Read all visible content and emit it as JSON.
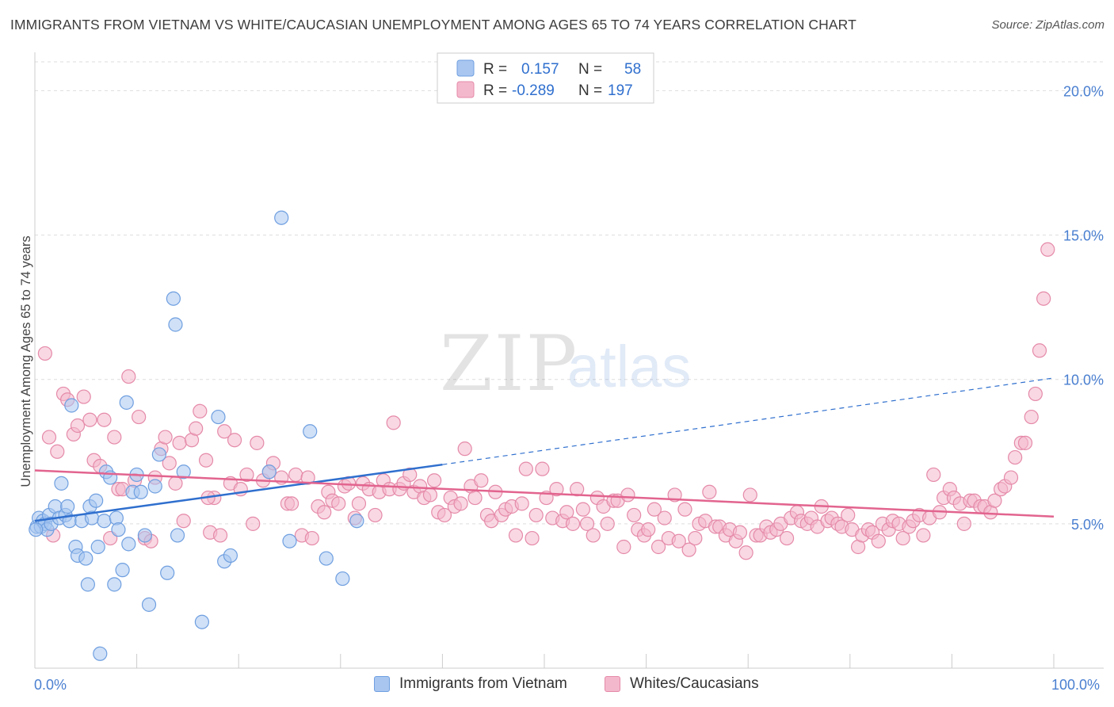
{
  "title": "IMMIGRANTS FROM VIETNAM VS WHITE/CAUCASIAN UNEMPLOYMENT AMONG AGES 65 TO 74 YEARS CORRELATION CHART",
  "source": "Source: ZipAtlas.com",
  "watermark": {
    "zip": "ZIP",
    "atlas": "atlas"
  },
  "legend_stats": [
    {
      "r_label": "R =",
      "r_value": "0.157",
      "n_label": "N =",
      "n_value": "58"
    },
    {
      "r_label": "R =",
      "r_value": "-0.289",
      "n_label": "N =",
      "n_value": "197"
    }
  ],
  "bottom_legend": [
    "Immigrants from Vietnam",
    "Whites/Caucasians"
  ],
  "colors": {
    "blue_fill": "#a8c6f0",
    "blue_stroke": "#6f9fe0",
    "blue_line": "#2f6fce",
    "pink_fill": "#f4b8cc",
    "pink_stroke": "#e58aa8",
    "pink_line": "#e2648f",
    "tick_text": "#4a7fd0",
    "grid": "#dddddd"
  },
  "chart_data": {
    "type": "scatter",
    "title": "IMMIGRANTS FROM VIETNAM VS WHITE/CAUCASIAN UNEMPLOYMENT AMONG AGES 65 TO 74 YEARS CORRELATION CHART",
    "xlabel": "",
    "ylabel": "Unemployment Among Ages 65 to 74 years",
    "xlim": [
      0,
      100
    ],
    "ylim": [
      0,
      21
    ],
    "x_tick_labels": [
      "0.0%",
      "100.0%"
    ],
    "y_ticks": [
      5,
      10,
      15,
      20
    ],
    "y_tick_labels": [
      "5.0%",
      "10.0%",
      "15.0%",
      "20.0%"
    ],
    "grid": true,
    "legend_position": "top-center",
    "series": [
      {
        "name": "Immigrants from Vietnam",
        "r": 0.157,
        "n": 58,
        "trend": {
          "x0": 0,
          "y0": 5.1,
          "x1": 40,
          "y1": 7.05,
          "dashed_to_x": 100,
          "dashed_y1": 10.05
        },
        "points": [
          [
            0.2,
            4.9
          ],
          [
            0.4,
            5.2
          ],
          [
            0.6,
            4.9
          ],
          [
            0.8,
            5.1
          ],
          [
            1.0,
            5.0
          ],
          [
            1.2,
            4.8
          ],
          [
            1.4,
            5.3
          ],
          [
            1.6,
            5.0
          ],
          [
            2.0,
            5.6
          ],
          [
            2.4,
            5.2
          ],
          [
            2.6,
            6.4
          ],
          [
            3.0,
            5.3
          ],
          [
            3.2,
            5.6
          ],
          [
            3.4,
            5.1
          ],
          [
            3.6,
            9.1
          ],
          [
            4.0,
            4.2
          ],
          [
            4.2,
            3.9
          ],
          [
            4.6,
            5.1
          ],
          [
            5.0,
            3.8
          ],
          [
            5.2,
            2.9
          ],
          [
            5.4,
            5.6
          ],
          [
            5.6,
            5.2
          ],
          [
            6.0,
            5.8
          ],
          [
            6.2,
            4.2
          ],
          [
            6.4,
            0.5
          ],
          [
            6.8,
            5.1
          ],
          [
            7.0,
            6.8
          ],
          [
            7.4,
            6.6
          ],
          [
            7.8,
            2.9
          ],
          [
            8.0,
            5.2
          ],
          [
            8.2,
            4.8
          ],
          [
            8.6,
            3.4
          ],
          [
            9.0,
            9.2
          ],
          [
            9.2,
            4.3
          ],
          [
            9.6,
            6.1
          ],
          [
            10.0,
            6.7
          ],
          [
            10.4,
            6.1
          ],
          [
            10.8,
            4.6
          ],
          [
            11.2,
            2.2
          ],
          [
            11.8,
            6.3
          ],
          [
            12.2,
            7.4
          ],
          [
            13.0,
            3.3
          ],
          [
            13.6,
            12.8
          ],
          [
            13.8,
            11.9
          ],
          [
            14.0,
            4.6
          ],
          [
            14.6,
            6.8
          ],
          [
            16.4,
            1.6
          ],
          [
            18.0,
            8.7
          ],
          [
            18.6,
            3.7
          ],
          [
            19.2,
            3.9
          ],
          [
            23.0,
            6.8
          ],
          [
            24.2,
            15.6
          ],
          [
            25.0,
            4.4
          ],
          [
            27.0,
            8.2
          ],
          [
            28.6,
            3.8
          ],
          [
            30.2,
            3.1
          ],
          [
            31.6,
            5.1
          ],
          [
            0.1,
            4.8
          ]
        ]
      },
      {
        "name": "Whites/Caucasians",
        "r": -0.289,
        "n": 197,
        "trend": {
          "x0": 0,
          "y0": 6.85,
          "x1": 100,
          "y1": 5.25
        },
        "points": [
          [
            1.0,
            10.9
          ],
          [
            1.4,
            8.0
          ],
          [
            1.8,
            4.6
          ],
          [
            2.2,
            7.5
          ],
          [
            2.8,
            9.5
          ],
          [
            3.2,
            9.3
          ],
          [
            3.8,
            8.1
          ],
          [
            4.2,
            8.4
          ],
          [
            4.8,
            9.4
          ],
          [
            5.4,
            8.6
          ],
          [
            5.8,
            7.2
          ],
          [
            6.4,
            7.0
          ],
          [
            6.8,
            8.6
          ],
          [
            7.4,
            4.5
          ],
          [
            7.8,
            8.0
          ],
          [
            8.2,
            6.2
          ],
          [
            8.6,
            6.2
          ],
          [
            9.2,
            10.1
          ],
          [
            9.8,
            6.5
          ],
          [
            10.2,
            8.7
          ],
          [
            10.8,
            4.5
          ],
          [
            11.4,
            4.4
          ],
          [
            11.8,
            6.6
          ],
          [
            12.4,
            7.6
          ],
          [
            12.8,
            8.0
          ],
          [
            13.2,
            7.1
          ],
          [
            13.8,
            6.4
          ],
          [
            14.2,
            7.8
          ],
          [
            14.6,
            5.1
          ],
          [
            15.4,
            7.9
          ],
          [
            15.8,
            8.3
          ],
          [
            16.2,
            8.9
          ],
          [
            16.8,
            7.2
          ],
          [
            17.2,
            4.7
          ],
          [
            17.6,
            5.9
          ],
          [
            18.2,
            4.6
          ],
          [
            18.6,
            8.2
          ],
          [
            19.2,
            6.4
          ],
          [
            19.6,
            7.9
          ],
          [
            20.2,
            6.2
          ],
          [
            20.8,
            6.7
          ],
          [
            21.4,
            5.0
          ],
          [
            21.8,
            7.8
          ],
          [
            22.4,
            6.5
          ],
          [
            23.0,
            6.8
          ],
          [
            23.4,
            7.1
          ],
          [
            24.2,
            6.6
          ],
          [
            24.8,
            5.7
          ],
          [
            25.2,
            5.7
          ],
          [
            25.6,
            6.7
          ],
          [
            26.2,
            4.6
          ],
          [
            26.8,
            6.6
          ],
          [
            27.2,
            4.5
          ],
          [
            27.8,
            5.6
          ],
          [
            28.4,
            5.4
          ],
          [
            28.8,
            6.1
          ],
          [
            29.2,
            5.8
          ],
          [
            29.8,
            5.7
          ],
          [
            30.4,
            6.3
          ],
          [
            30.8,
            6.4
          ],
          [
            31.4,
            5.2
          ],
          [
            31.8,
            5.7
          ],
          [
            32.2,
            6.4
          ],
          [
            32.8,
            6.2
          ],
          [
            33.4,
            5.3
          ],
          [
            33.8,
            6.1
          ],
          [
            34.2,
            6.5
          ],
          [
            34.8,
            6.2
          ],
          [
            35.2,
            8.5
          ],
          [
            35.8,
            6.2
          ],
          [
            36.2,
            6.4
          ],
          [
            36.8,
            6.7
          ],
          [
            37.2,
            6.1
          ],
          [
            37.8,
            6.3
          ],
          [
            38.2,
            5.9
          ],
          [
            38.8,
            6.0
          ],
          [
            39.2,
            6.5
          ],
          [
            39.6,
            5.4
          ],
          [
            40.2,
            5.3
          ],
          [
            40.8,
            5.9
          ],
          [
            41.2,
            5.6
          ],
          [
            41.8,
            5.7
          ],
          [
            42.2,
            7.6
          ],
          [
            42.8,
            6.3
          ],
          [
            43.2,
            5.9
          ],
          [
            43.8,
            6.5
          ],
          [
            44.4,
            5.3
          ],
          [
            44.8,
            5.1
          ],
          [
            45.2,
            6.1
          ],
          [
            45.8,
            5.3
          ],
          [
            46.2,
            5.5
          ],
          [
            46.8,
            5.6
          ],
          [
            47.2,
            4.6
          ],
          [
            47.8,
            5.7
          ],
          [
            48.2,
            6.9
          ],
          [
            48.8,
            4.5
          ],
          [
            49.2,
            5.3
          ],
          [
            49.8,
            6.9
          ],
          [
            50.2,
            5.9
          ],
          [
            50.8,
            5.2
          ],
          [
            51.2,
            6.2
          ],
          [
            51.8,
            5.1
          ],
          [
            52.2,
            5.4
          ],
          [
            52.8,
            5.0
          ],
          [
            53.2,
            6.2
          ],
          [
            53.8,
            5.5
          ],
          [
            54.2,
            5.0
          ],
          [
            54.8,
            4.6
          ],
          [
            55.2,
            5.9
          ],
          [
            55.8,
            5.6
          ],
          [
            56.2,
            5.0
          ],
          [
            56.8,
            5.8
          ],
          [
            57.2,
            5.8
          ],
          [
            57.8,
            4.2
          ],
          [
            58.2,
            6.0
          ],
          [
            58.8,
            5.3
          ],
          [
            59.2,
            4.8
          ],
          [
            59.8,
            4.6
          ],
          [
            60.2,
            4.8
          ],
          [
            60.8,
            5.5
          ],
          [
            61.2,
            4.2
          ],
          [
            61.8,
            5.2
          ],
          [
            62.2,
            4.5
          ],
          [
            62.8,
            6.0
          ],
          [
            63.2,
            4.4
          ],
          [
            63.8,
            5.5
          ],
          [
            64.2,
            4.1
          ],
          [
            64.8,
            4.5
          ],
          [
            65.2,
            5.0
          ],
          [
            65.8,
            5.1
          ],
          [
            66.2,
            6.1
          ],
          [
            66.8,
            4.9
          ],
          [
            67.2,
            4.9
          ],
          [
            67.8,
            4.6
          ],
          [
            68.2,
            4.8
          ],
          [
            68.8,
            4.4
          ],
          [
            69.2,
            4.7
          ],
          [
            69.8,
            4.0
          ],
          [
            70.2,
            6.0
          ],
          [
            70.8,
            4.6
          ],
          [
            71.2,
            4.6
          ],
          [
            71.8,
            4.9
          ],
          [
            72.2,
            4.7
          ],
          [
            72.8,
            4.8
          ],
          [
            73.2,
            5.0
          ],
          [
            73.8,
            4.5
          ],
          [
            74.2,
            5.2
          ],
          [
            74.8,
            5.4
          ],
          [
            75.2,
            5.1
          ],
          [
            75.8,
            5.0
          ],
          [
            76.2,
            5.2
          ],
          [
            76.8,
            4.9
          ],
          [
            77.2,
            5.6
          ],
          [
            77.8,
            5.1
          ],
          [
            78.2,
            5.2
          ],
          [
            78.8,
            5.0
          ],
          [
            79.2,
            4.9
          ],
          [
            79.8,
            5.3
          ],
          [
            80.2,
            4.8
          ],
          [
            80.8,
            4.2
          ],
          [
            81.2,
            4.6
          ],
          [
            81.8,
            4.8
          ],
          [
            82.2,
            4.7
          ],
          [
            82.8,
            4.4
          ],
          [
            83.2,
            5.0
          ],
          [
            83.8,
            4.8
          ],
          [
            84.2,
            5.1
          ],
          [
            84.8,
            5.0
          ],
          [
            85.2,
            4.5
          ],
          [
            85.8,
            4.9
          ],
          [
            86.2,
            5.1
          ],
          [
            86.8,
            5.3
          ],
          [
            87.2,
            4.6
          ],
          [
            87.8,
            5.2
          ],
          [
            88.2,
            6.7
          ],
          [
            88.8,
            5.4
          ],
          [
            89.2,
            5.9
          ],
          [
            89.8,
            6.2
          ],
          [
            90.2,
            5.9
          ],
          [
            90.8,
            5.7
          ],
          [
            91.2,
            5.0
          ],
          [
            91.8,
            5.8
          ],
          [
            92.2,
            5.8
          ],
          [
            92.8,
            5.6
          ],
          [
            93.2,
            5.6
          ],
          [
            93.8,
            5.4
          ],
          [
            94.2,
            5.8
          ],
          [
            94.8,
            6.2
          ],
          [
            95.2,
            6.3
          ],
          [
            95.8,
            6.6
          ],
          [
            96.2,
            7.3
          ],
          [
            96.8,
            7.8
          ],
          [
            97.2,
            7.8
          ],
          [
            97.8,
            8.7
          ],
          [
            98.2,
            9.5
          ],
          [
            98.6,
            11.0
          ],
          [
            99.0,
            12.8
          ],
          [
            99.4,
            14.5
          ],
          [
            17.0,
            5.9
          ]
        ]
      }
    ]
  }
}
